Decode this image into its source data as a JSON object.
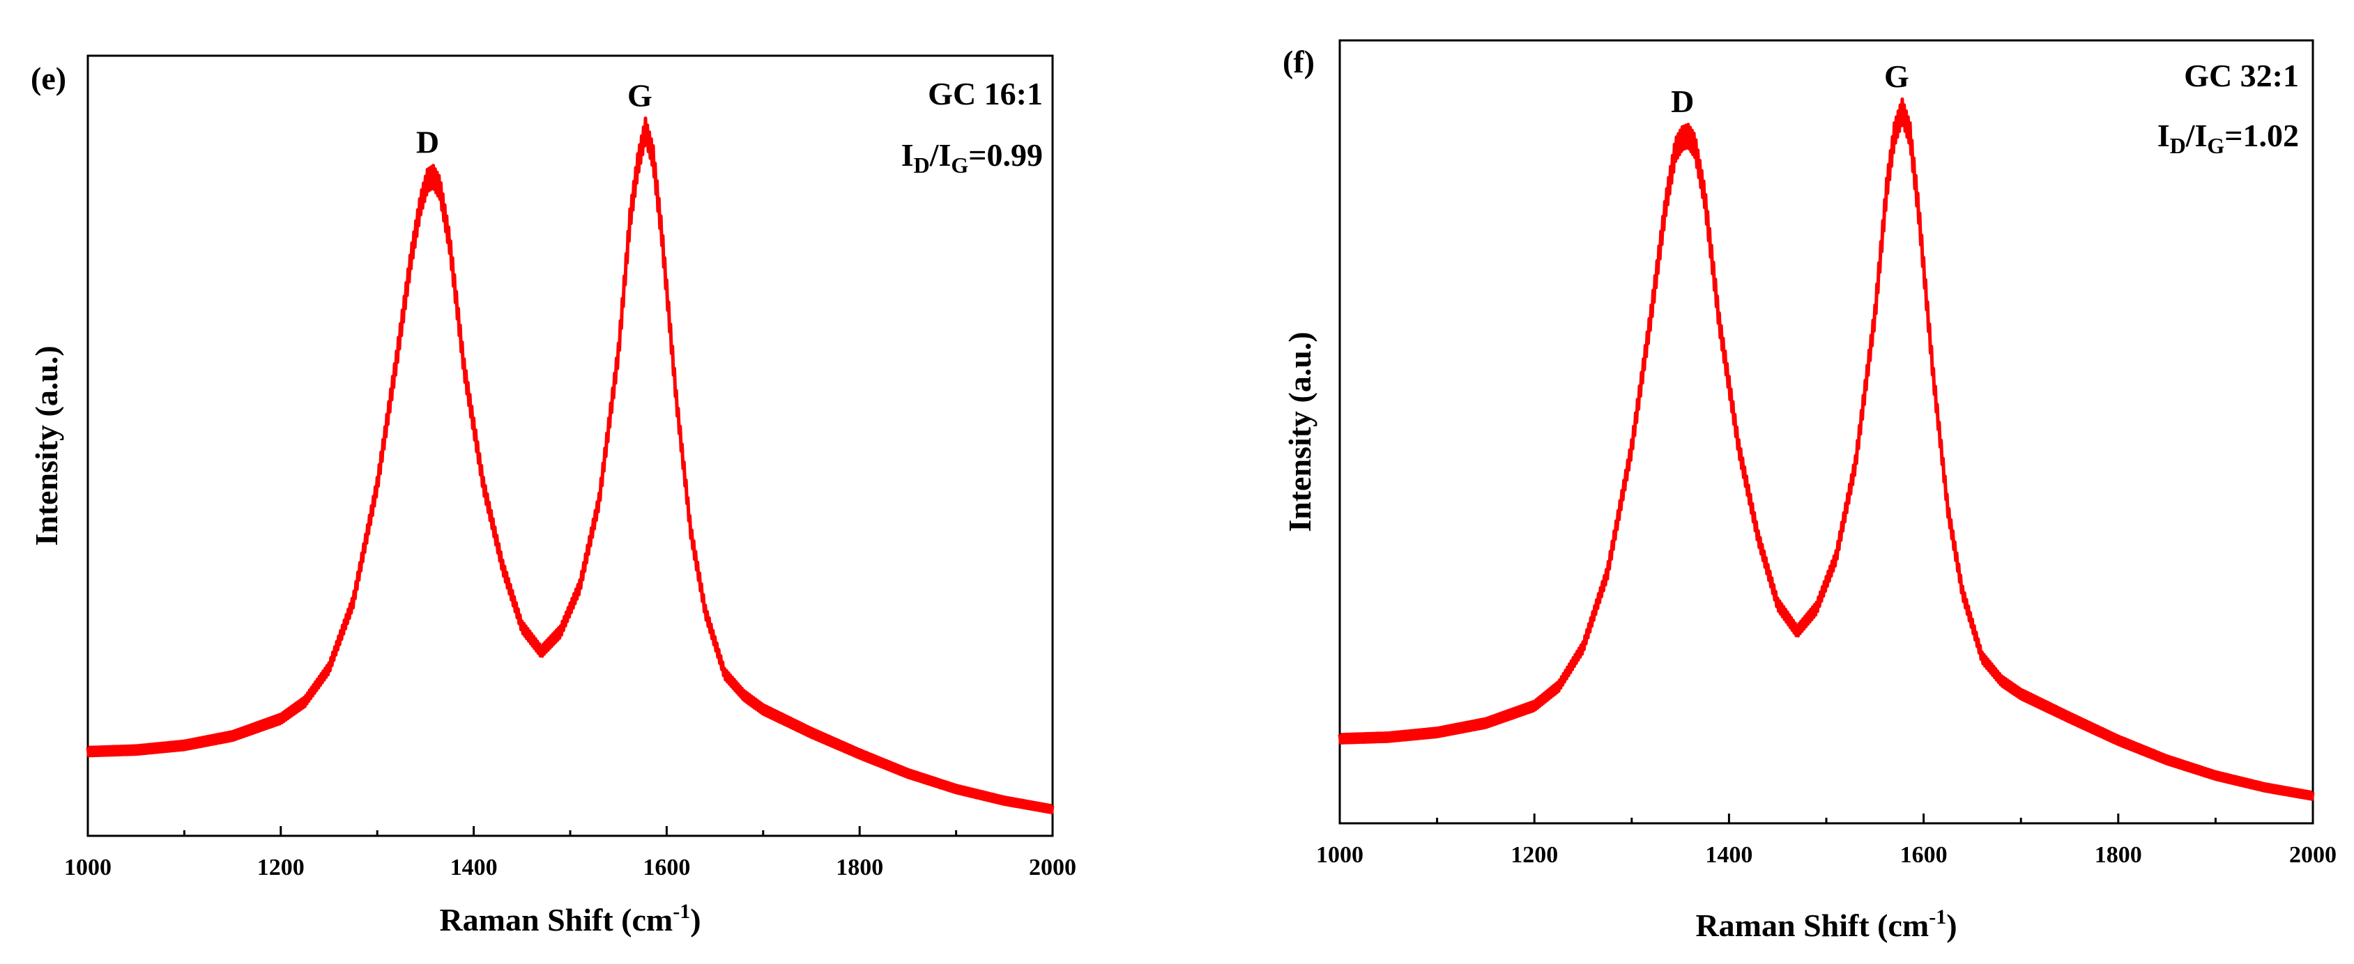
{
  "chart_data": [
    {
      "type": "line",
      "panel_label": "(e)",
      "sample": "GC 16:1",
      "ratio_text": {
        "i": "I",
        "d_sub": "D",
        "slash": "/",
        "g_sub": "G",
        "value": "=0.99"
      },
      "peaks": [
        {
          "label": "D",
          "x": 1358
        },
        {
          "label": "G",
          "x": 1578
        }
      ],
      "xlabel": {
        "main": "Raman Shift (cm",
        "sup": "-1",
        "close": ")"
      },
      "ylabel": "Intensity (a.u.)",
      "xlim": [
        1000,
        2000
      ],
      "ylim": [
        0,
        1
      ],
      "x_ticks": [
        1000,
        1200,
        1400,
        1600,
        1800,
        2000
      ],
      "x_tick_labels": [
        "1000",
        "1200",
        "1400",
        "1600",
        "1800",
        "2000"
      ],
      "color": "#ff0000",
      "series": [
        {
          "name": "GC 16:1",
          "x": [
            1000,
            1050,
            1100,
            1150,
            1200,
            1225,
            1250,
            1275,
            1300,
            1320,
            1335,
            1345,
            1352,
            1358,
            1365,
            1375,
            1390,
            1410,
            1430,
            1450,
            1470,
            1490,
            1510,
            1530,
            1550,
            1562,
            1570,
            1578,
            1586,
            1595,
            1610,
            1625,
            1640,
            1660,
            1680,
            1700,
            1750,
            1800,
            1850,
            1900,
            1950,
            2000
          ],
          "values": [
            0.108,
            0.11,
            0.116,
            0.128,
            0.15,
            0.172,
            0.215,
            0.3,
            0.45,
            0.61,
            0.74,
            0.81,
            0.84,
            0.845,
            0.83,
            0.76,
            0.6,
            0.45,
            0.345,
            0.268,
            0.236,
            0.262,
            0.32,
            0.43,
            0.62,
            0.79,
            0.86,
            0.905,
            0.87,
            0.77,
            0.56,
            0.39,
            0.288,
            0.208,
            0.18,
            0.162,
            0.132,
            0.105,
            0.08,
            0.06,
            0.045,
            0.034
          ]
        }
      ]
    },
    {
      "type": "line",
      "panel_label": "(f)",
      "sample": "GC 32:1",
      "ratio_text": {
        "i": "I",
        "d_sub": "D",
        "slash": "/",
        "g_sub": "G",
        "value": "=1.02"
      },
      "peaks": [
        {
          "label": "D",
          "x": 1358
        },
        {
          "label": "G",
          "x": 1578
        }
      ],
      "xlabel": {
        "main": "Raman Shift (cm",
        "sup": "-1",
        "close": ")"
      },
      "ylabel": "Intensity (a.u.)",
      "xlim": [
        1000,
        2000
      ],
      "ylim": [
        0,
        1
      ],
      "x_ticks": [
        1000,
        1200,
        1400,
        1600,
        1800,
        2000
      ],
      "x_tick_labels": [
        "1000",
        "1200",
        "1400",
        "1600",
        "1800",
        "2000"
      ],
      "color": "#ff0000",
      "series": [
        {
          "name": "GC 32:1",
          "x": [
            1000,
            1050,
            1100,
            1150,
            1200,
            1225,
            1250,
            1275,
            1300,
            1320,
            1335,
            1345,
            1352,
            1358,
            1365,
            1375,
            1390,
            1410,
            1430,
            1450,
            1470,
            1490,
            1510,
            1530,
            1550,
            1562,
            1570,
            1578,
            1586,
            1595,
            1610,
            1625,
            1640,
            1660,
            1680,
            1700,
            1750,
            1800,
            1850,
            1900,
            1950,
            2000
          ],
          "values": [
            0.108,
            0.11,
            0.116,
            0.128,
            0.15,
            0.175,
            0.225,
            0.32,
            0.48,
            0.65,
            0.79,
            0.86,
            0.875,
            0.878,
            0.865,
            0.8,
            0.64,
            0.48,
            0.365,
            0.28,
            0.245,
            0.275,
            0.34,
            0.46,
            0.65,
            0.81,
            0.88,
            0.91,
            0.88,
            0.78,
            0.57,
            0.4,
            0.295,
            0.212,
            0.182,
            0.165,
            0.135,
            0.106,
            0.081,
            0.061,
            0.046,
            0.035
          ]
        }
      ]
    }
  ]
}
